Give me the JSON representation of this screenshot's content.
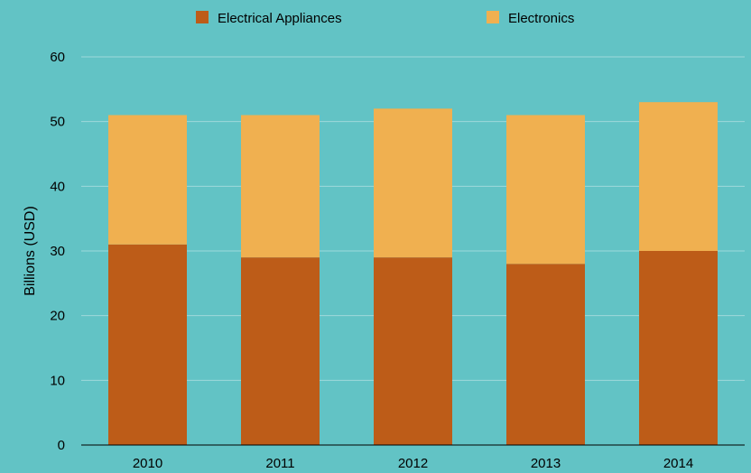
{
  "chart_data": {
    "type": "bar",
    "stacked": true,
    "categories": [
      "2010",
      "2011",
      "2012",
      "2013",
      "2014"
    ],
    "series": [
      {
        "name": "Electrical Appliances",
        "values": [
          31,
          29,
          29,
          28,
          30
        ],
        "color": "#bd5c18"
      },
      {
        "name": "Electronics",
        "values": [
          20,
          22,
          23,
          23,
          23
        ],
        "color": "#f0b050"
      }
    ],
    "ylabel": "Billions (USD)",
    "ylim": [
      0,
      60
    ],
    "yticks": [
      "0",
      "10",
      "20",
      "30",
      "40",
      "50",
      "60"
    ],
    "grid": true,
    "legend_position": "top"
  },
  "colors": {
    "background": "#62c3c5",
    "gridline": "#9fd8da",
    "axis": "#000000"
  }
}
